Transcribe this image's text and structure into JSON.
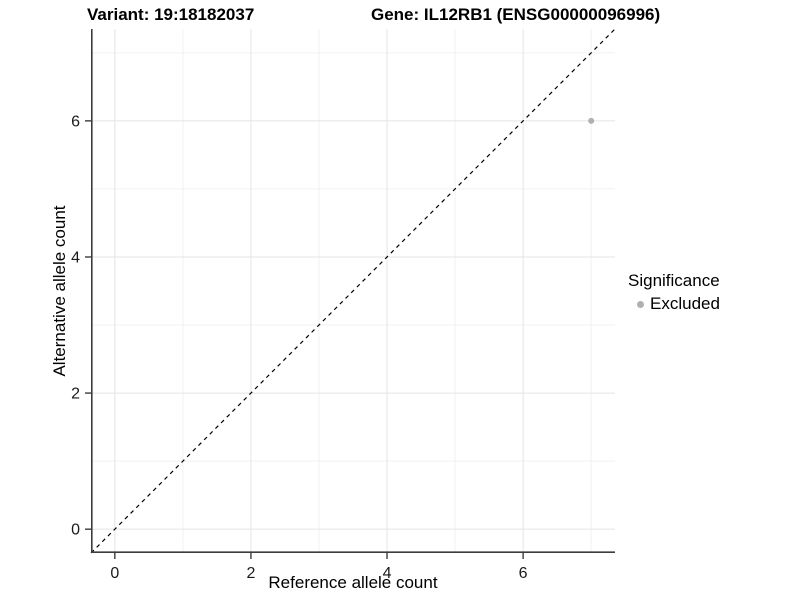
{
  "chart_data": {
    "type": "scatter",
    "title_variant": "Variant: 19:18182037",
    "title_gene": "Gene: IL12RB1 (ENSG00000096996)",
    "xlabel": "Reference allele count",
    "ylabel": "Alternative allele count",
    "xlim": [
      -0.35,
      7.35
    ],
    "ylim": [
      -0.35,
      7.35
    ],
    "x_ticks": [
      0,
      2,
      4,
      6
    ],
    "y_ticks": [
      0,
      2,
      4,
      6
    ],
    "x_minor_ticks": [
      1,
      3,
      5,
      7
    ],
    "y_minor_ticks": [
      1,
      3,
      5,
      7
    ],
    "grid": true,
    "series": [
      {
        "name": "Excluded",
        "color": "#b0b0b0",
        "points": [
          {
            "x": 7,
            "y": 6
          }
        ]
      }
    ],
    "reference_line": {
      "equation": "y = x",
      "style": "dashed",
      "color": "#000000",
      "from": [
        -0.35,
        -0.35
      ],
      "to": [
        7.35,
        7.35
      ]
    },
    "legend": {
      "position": "right",
      "title": "Significance",
      "entries": [
        {
          "label": "Excluded",
          "color": "#b0b0b0"
        }
      ]
    },
    "colors": {
      "grid_major": "#e4e4e4",
      "grid_minor": "#f1f1f1",
      "axis_line": "#3c3c3c",
      "text": "#000000"
    }
  }
}
